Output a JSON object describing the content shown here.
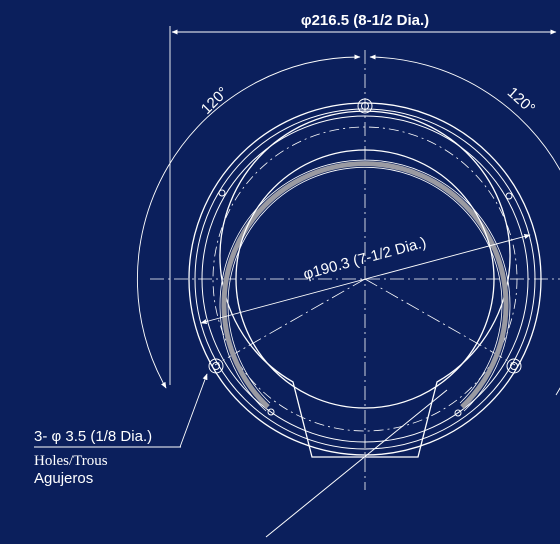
{
  "diagram": {
    "outer_dimension_label": "φ216.5 (8-1/2 Dia.)",
    "inner_dimension_label": "φ190.3 (7-1/2 Dia.)",
    "angle_left_label": "120°",
    "angle_right_label": "120°",
    "holes_label": "3- φ 3.5 (1/8 Dia.)",
    "holes_sub_label": "Holes/Trous",
    "holes_sub_label_2": "Agujeros",
    "colors": {
      "background": "#0b1f5c",
      "line": "#ffffff",
      "gasket": "#9a9aa2"
    }
  }
}
